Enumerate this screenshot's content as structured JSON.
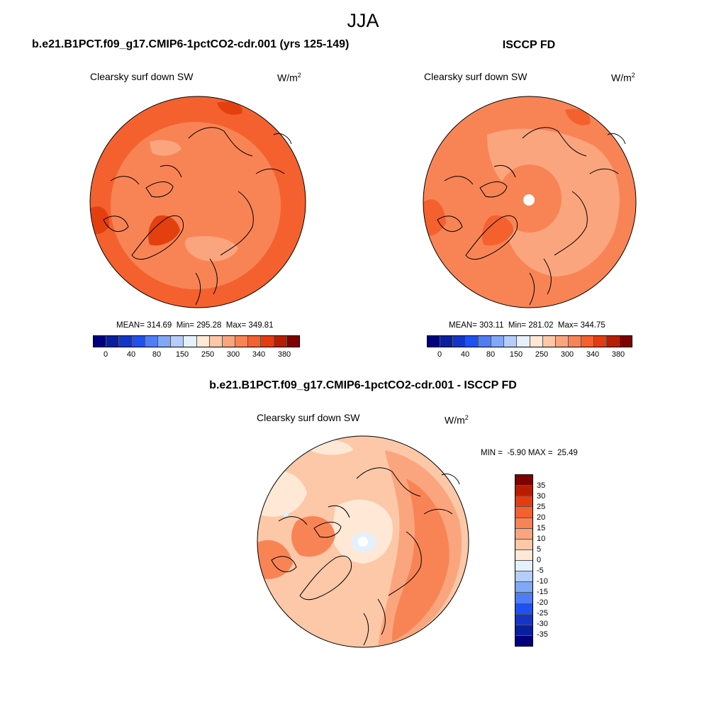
{
  "title": "JJA",
  "panels": {
    "model": {
      "title": "b.e21.B1PCT.f09_g17.CMIP6-1pctCO2-cdr.001 (yrs 125-149)",
      "variable": "Clearsky surf down SW",
      "units_base": "W/m",
      "units_exp": "2",
      "stats": {
        "mean_label": "MEAN=",
        "mean": "314.69",
        "min_label": "Min=",
        "min": "295.28",
        "max_label": "Max=",
        "max": "349.81"
      }
    },
    "obs": {
      "title": "ISCCP FD",
      "variable": "Clearsky surf down SW",
      "units_base": "W/m",
      "units_exp": "2",
      "stats": {
        "mean_label": "MEAN=",
        "mean": "303.11",
        "min_label": "Min=",
        "min": "281.02",
        "max_label": "Max=",
        "max": "344.75"
      }
    },
    "diff": {
      "title": "b.e21.B1PCT.f09_g17.CMIP6-1pctCO2-cdr.001 - ISCCP FD",
      "variable": "Clearsky surf down SW",
      "units_base": "W/m",
      "units_exp": "2",
      "stats": {
        "min_label": "MIN =",
        "min": "-5.90",
        "max_label": "MAX =",
        "max": "25.49"
      }
    }
  },
  "colorbars": {
    "main": {
      "colors": [
        "#00007f",
        "#0a1fa0",
        "#1336c8",
        "#1f50f0",
        "#4f7df5",
        "#80a8f7",
        "#b5cdfa",
        "#e4f0fc",
        "#ffe8d6",
        "#fcc8a8",
        "#fba57e",
        "#f88456",
        "#f4602f",
        "#e43c10",
        "#b81d00",
        "#7f0000"
      ],
      "labels": [
        "0",
        "40",
        "80",
        "150",
        "250",
        "300",
        "340",
        "380"
      ]
    },
    "diff": {
      "colors": [
        "#7f0000",
        "#b81d00",
        "#e43c10",
        "#f4602f",
        "#f88456",
        "#fba57e",
        "#fcc8a8",
        "#ffe8d6",
        "#e4f0fc",
        "#b5cdfa",
        "#80a8f7",
        "#4f7df5",
        "#1f50f0",
        "#1336c8",
        "#0a1fa0",
        "#00007f"
      ],
      "labels": [
        "35",
        "30",
        "25",
        "20",
        "15",
        "10",
        "5",
        "0",
        "-5",
        "-10",
        "-15",
        "-20",
        "-25",
        "-30",
        "-35"
      ]
    }
  },
  "palette": {
    "ocean_model": "#f4612f",
    "band_model": "#f88456",
    "max_model": "#e4400f",
    "ocean_obs": "#f88456",
    "light_obs": "#fba57e",
    "max_obs": "#f4612f",
    "diff_base": "#fcc8a8",
    "diff_light": "#ffe8d6",
    "diff_mid": "#fba57e",
    "diff_high": "#f88456",
    "diff_neg": "#e4f0fc",
    "outline": "#000000"
  }
}
